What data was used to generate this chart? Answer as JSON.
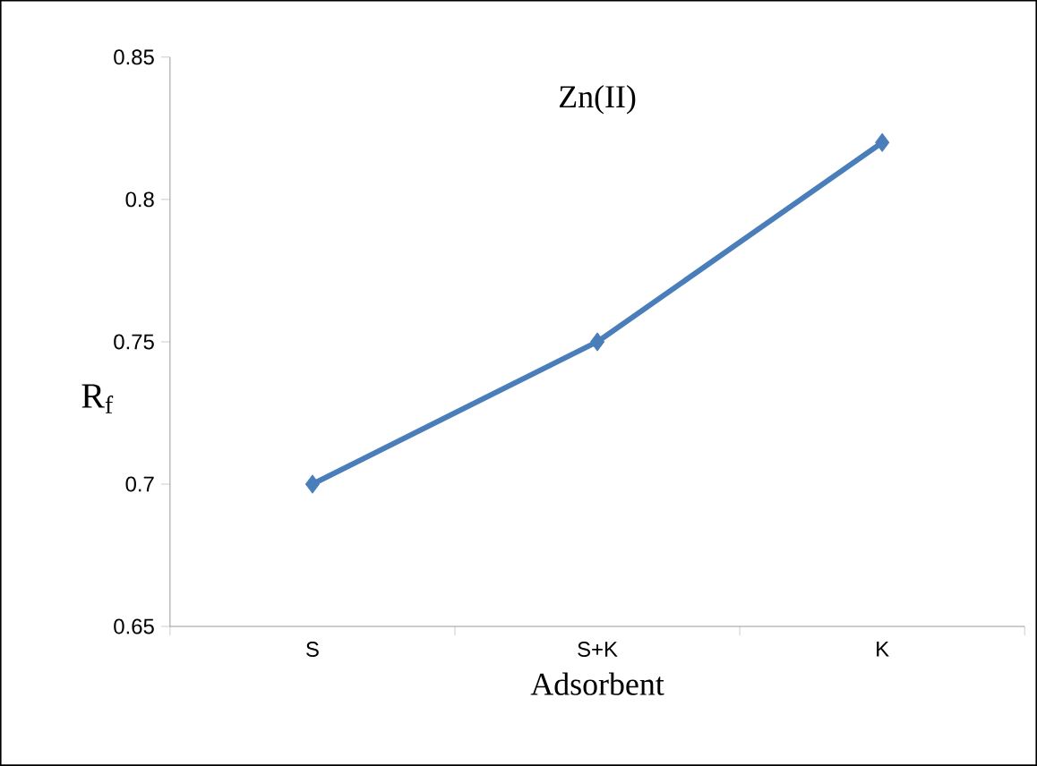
{
  "chart_data": {
    "type": "line",
    "title": "Zn(II)",
    "xlabel": "Adsorbent",
    "ylabel": "R$_{f}$",
    "categories": [
      "S",
      "S+K",
      "K"
    ],
    "values": [
      0.7,
      0.75,
      0.82
    ],
    "color": "#4a7ebb",
    "marker": "diamond",
    "ylim": [
      0.65,
      0.85
    ],
    "yticks": [
      0.65,
      0.7,
      0.75,
      0.8,
      0.85
    ]
  }
}
